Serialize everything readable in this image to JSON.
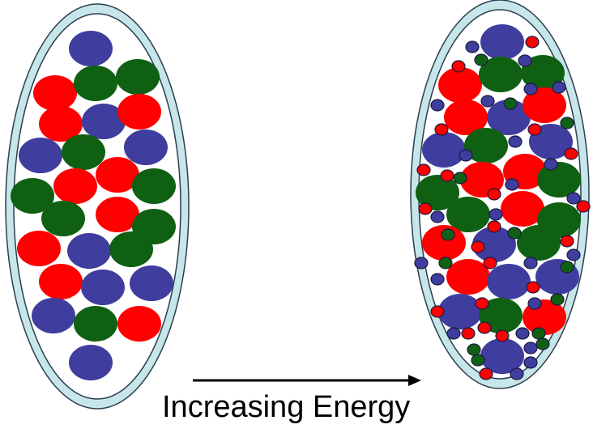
{
  "caption": "Increasing Energy",
  "colors": {
    "container_fill": "#c6e6ea",
    "container_inner": "#ffffff",
    "container_stroke": "#2c3e50",
    "particle_red": "#ff0000",
    "particle_blue": "#3f3d9e",
    "particle_green": "#0f6013",
    "arrow": "#000000"
  }
}
